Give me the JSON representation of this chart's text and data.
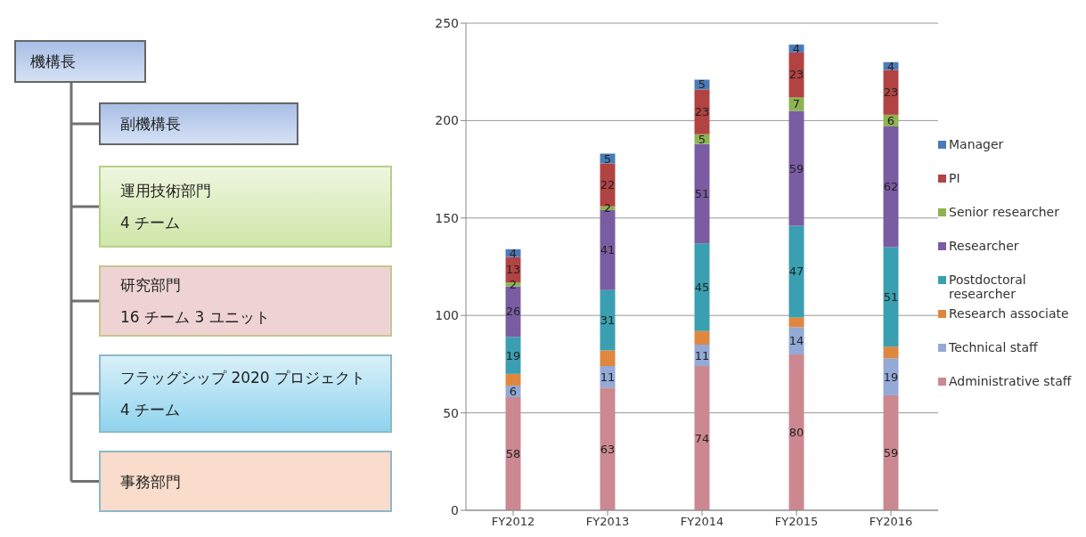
{
  "chart_data": [
    {
      "type": "other",
      "annotations": [
        "機構長",
        "副機構長",
        "運用技術部門\n4 チーム",
        "研究部門\n16 チーム 3 ユニット",
        "フラッグシップ 2020 プロジェクト　4 チーム",
        "事務部門"
      ]
    },
    {
      "type": "bar",
      "stacked": true,
      "categories": [
        "FY2012",
        "FY2013",
        "FY2014",
        "FY2015",
        "FY2016"
      ],
      "series": [
        {
          "name": "Administrative staff",
          "color": "#cc8890",
          "values": [
            58,
            63,
            74,
            80,
            59
          ],
          "value_labels": [
            "58",
            "63",
            "74",
            "80",
            "59"
          ]
        },
        {
          "name": "Technical staff",
          "color": "#93a9d6",
          "values": [
            6,
            11,
            11,
            14,
            19
          ],
          "value_labels": [
            "6",
            "11",
            "11",
            "14",
            "19"
          ]
        },
        {
          "name": "Research associate",
          "color": "#e0873f",
          "values": [
            6,
            8,
            7,
            5,
            6
          ],
          "value_labels": [
            null,
            null,
            null,
            null,
            null
          ]
        },
        {
          "name": "Postdoctoral researcher",
          "color": "#3a9fb0",
          "values": [
            19,
            31,
            45,
            47,
            51
          ],
          "value_labels": [
            "19",
            "31",
            "45",
            "47",
            "51"
          ]
        },
        {
          "name": "Researcher",
          "color": "#7a5ca3",
          "values": [
            26,
            41,
            51,
            59,
            62
          ],
          "value_labels": [
            "26",
            "41",
            "51",
            "59",
            "62"
          ]
        },
        {
          "name": "Senior researcher",
          "color": "#8db350",
          "values": [
            2,
            2,
            5,
            7,
            6
          ],
          "value_labels": [
            "2",
            "2",
            "5",
            "7",
            "6"
          ]
        },
        {
          "name": "PI",
          "color": "#b24343",
          "values": [
            13,
            22,
            23,
            23,
            23
          ],
          "value_labels": [
            "13",
            "22",
            "23",
            "23",
            "23"
          ]
        },
        {
          "name": "Manager",
          "color": "#4a7bb9",
          "values": [
            4,
            5,
            5,
            4,
            4
          ],
          "value_labels": [
            "4",
            "5",
            "5",
            "4",
            "4"
          ]
        }
      ],
      "ylim": [
        0,
        250
      ],
      "yticks": [
        0,
        50,
        100,
        150,
        200,
        250
      ],
      "grid": "y",
      "legend": "right"
    }
  ]
}
